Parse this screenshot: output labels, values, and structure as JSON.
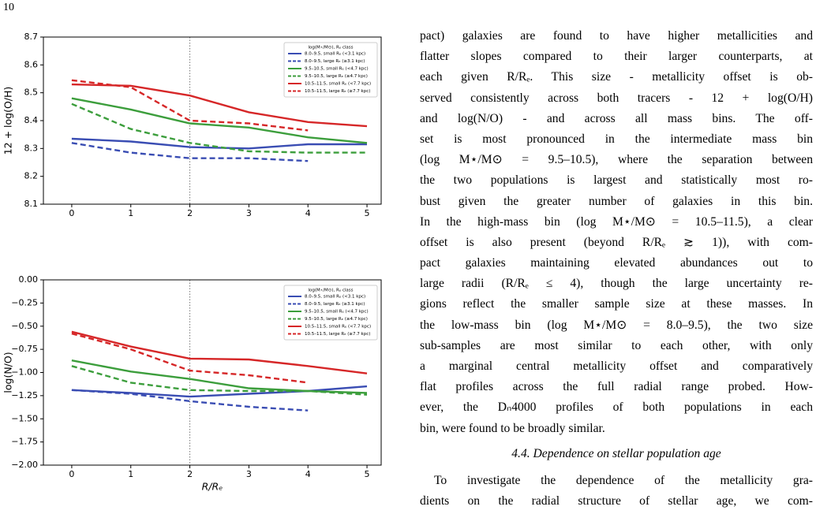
{
  "page_number": "10",
  "chart_data": [
    {
      "type": "line",
      "ylabel": "12 + log(O/H)",
      "xlabel": null,
      "legend_title": "log(M⋆/M⊙),  Rₑ class",
      "legend": "upper right",
      "x": [
        0,
        1,
        2,
        3,
        4,
        5
      ],
      "xlim": [
        -0.48,
        5.24
      ],
      "xticks": [
        0,
        1,
        2,
        3,
        4,
        5
      ],
      "ylim": [
        8.1,
        8.7
      ],
      "yticks": [
        8.1,
        8.2,
        8.3,
        8.4,
        8.5,
        8.6,
        8.7
      ],
      "vline": 2,
      "series": [
        {
          "name": "8.0–9.5, small Rₑ (<3.1 kpc)",
          "color": "#3a4db3",
          "dashed": false,
          "values": [
            8.335,
            8.325,
            8.305,
            8.3,
            8.315,
            8.315
          ]
        },
        {
          "name": "8.0–9.5, large Rₑ (≥3.1 kpc)",
          "color": "#3a4db3",
          "dashed": true,
          "values": [
            8.32,
            8.285,
            8.265,
            8.265,
            8.255,
            null
          ]
        },
        {
          "name": "9.5–10.5, small Rₑ (<4.7 kpc)",
          "color": "#3c9e3c",
          "dashed": false,
          "values": [
            8.48,
            8.44,
            8.39,
            8.375,
            8.34,
            8.32
          ]
        },
        {
          "name": "9.5–10.5, large Rₑ (≥4.7 kpc)",
          "color": "#3c9e3c",
          "dashed": true,
          "values": [
            8.46,
            8.37,
            8.32,
            8.29,
            8.285,
            8.285
          ]
        },
        {
          "name": "10.5–11.5, small Rₑ (<7.7 kpc)",
          "color": "#d62728",
          "dashed": false,
          "values": [
            8.53,
            8.525,
            8.49,
            8.43,
            8.395,
            8.38
          ]
        },
        {
          "name": "10.5–11.5, large Rₑ (≥7.7 kpc)",
          "color": "#d62728",
          "dashed": true,
          "values": [
            8.545,
            8.52,
            8.4,
            8.39,
            8.365,
            null
          ]
        }
      ]
    },
    {
      "type": "line",
      "ylabel": "log(N/O)",
      "xlabel": "R/Rₑ",
      "legend_title": "log(M⋆/M⊙),  Rₑ class",
      "legend": "upper right",
      "x": [
        0,
        1,
        2,
        3,
        4,
        5
      ],
      "xlim": [
        -0.48,
        5.24
      ],
      "xticks": [
        0,
        1,
        2,
        3,
        4,
        5
      ],
      "ylim": [
        -2.0,
        0.0
      ],
      "yticks": [
        {
          "value": -2.0,
          "label": "−2.00"
        },
        {
          "value": -1.75,
          "label": "−1.75"
        },
        {
          "value": -1.5,
          "label": "−1.50"
        },
        {
          "value": -1.25,
          "label": "−1.25"
        },
        {
          "value": -1.0,
          "label": "−1.00"
        },
        {
          "value": -0.75,
          "label": "−0.75"
        },
        {
          "value": -0.5,
          "label": "−0.50"
        },
        {
          "value": -0.25,
          "label": "−0.25"
        },
        {
          "value": 0.0,
          "label": "0.00"
        }
      ],
      "vline": 2,
      "series": [
        {
          "name": "8.0–9.5, small Rₑ (<3.1 kpc)",
          "color": "#3a4db3",
          "dashed": false,
          "values": [
            -1.19,
            -1.22,
            -1.26,
            -1.23,
            -1.2,
            -1.15
          ]
        },
        {
          "name": "8.0–9.5, large Rₑ (≥3.1 kpc)",
          "color": "#3a4db3",
          "dashed": true,
          "values": [
            -1.19,
            -1.23,
            -1.31,
            -1.37,
            -1.41,
            null
          ]
        },
        {
          "name": "9.5–10.5, small Rₑ (<4.7 kpc)",
          "color": "#3c9e3c",
          "dashed": false,
          "values": [
            -0.87,
            -0.99,
            -1.07,
            -1.17,
            -1.2,
            -1.22
          ]
        },
        {
          "name": "9.5–10.5, large Rₑ (≥4.7 kpc)",
          "color": "#3c9e3c",
          "dashed": true,
          "values": [
            -0.93,
            -1.11,
            -1.19,
            -1.2,
            -1.2,
            -1.24
          ]
        },
        {
          "name": "10.5–11.5, small Rₑ (<7.7 kpc)",
          "color": "#d62728",
          "dashed": false,
          "values": [
            -0.56,
            -0.72,
            -0.85,
            -0.86,
            -0.93,
            -1.01
          ]
        },
        {
          "name": "10.5–11.5, large Rₑ (≥7.7 kpc)",
          "color": "#d62728",
          "dashed": true,
          "values": [
            -0.58,
            -0.75,
            -0.98,
            -1.03,
            -1.11,
            null
          ]
        }
      ]
    }
  ],
  "body": {
    "paragraphs": [
      [
        "pact) galaxies are found to have higher metallicities and",
        "flatter slopes compared to their larger counterparts, at",
        "each given R/Rₑ.  This size - metallicity offset is ob-",
        "served consistently across both tracers - 12 + log(O/H)",
        "and log(N/O) - and across all mass bins.  The off-",
        "set is most pronounced in the intermediate mass bin",
        "(log M⋆/M⊙ = 9.5–10.5), where the separation between",
        "the two populations is largest and statistically most ro-",
        "bust given the greater number of galaxies in this bin.",
        "In the high-mass bin (log M⋆/M⊙ = 10.5–11.5), a clear",
        "offset is also present (beyond R/Rₑ ≳ 1)), with com-",
        "pact galaxies maintaining elevated abundances out to",
        "large radii (R/Rₑ ≤ 4), though the large uncertainty re-",
        "gions reflect the smaller sample size at these masses. In",
        "the low-mass bin (log M⋆/M⊙ = 8.0–9.5), the two size",
        "sub-samples are most similar to each other, with only",
        "a marginal central metallicity offset and comparatively",
        "flat profiles across the full radial range probed.  How-",
        "ever, the Dₙ4000 profiles of both populations in each",
        "bin, were found to be broadly similar."
      ]
    ],
    "section_heading": "4.4. Dependence on stellar population age",
    "section_lines": [
      "To investigate the dependence of the metallicity gra-",
      "dients on the radial structure of stellar age, we com-"
    ]
  }
}
